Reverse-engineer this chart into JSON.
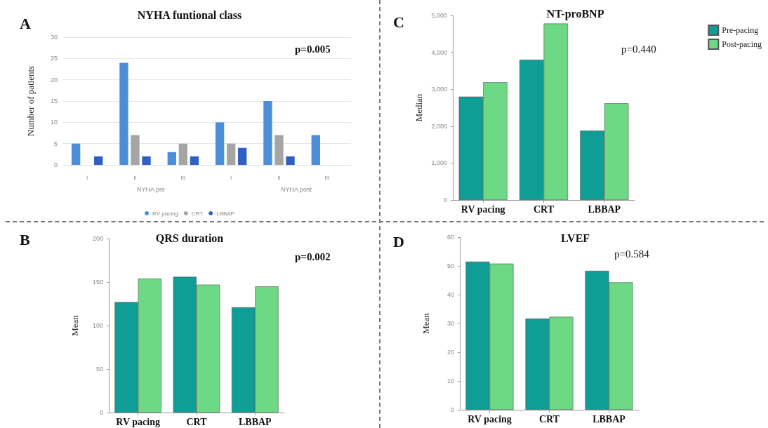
{
  "chart_data": [
    {
      "type": "bar",
      "title": "NYHA funtional class",
      "ylabel": "Number of patients",
      "categories": [
        "I",
        "II",
        "III",
        "I",
        "II",
        "III"
      ],
      "annotations": [
        "A",
        "p=0.005",
        "NYHA pre",
        "NYHA post"
      ],
      "ylim": [
        0,
        30
      ],
      "yticks": [
        0,
        5,
        10,
        15,
        20,
        25,
        30
      ],
      "grid": "y",
      "legend": "bottom",
      "series": [
        {
          "name": "RV pacing",
          "color": "#4a8fd8",
          "values": [
            5,
            24,
            3,
            10,
            15,
            7
          ]
        },
        {
          "name": "CRT",
          "color": "#a5a5a5",
          "values": [
            0,
            7,
            5,
            5,
            7,
            0
          ]
        },
        {
          "name": "LBBAP",
          "color": "#2f5fc4",
          "values": [
            2,
            2,
            2,
            4,
            2,
            0
          ]
        }
      ]
    },
    {
      "type": "bar",
      "title": "NT-proBNP",
      "ylabel": "Median",
      "categories": [
        "RV pacing",
        "CRT",
        "LBBAP"
      ],
      "annotations": [
        "C",
        "p=0.440"
      ],
      "ylim": [
        0,
        5000
      ],
      "yticks": [
        0,
        {
          "value": 1000,
          "label": "1,000"
        },
        {
          "value": 2000,
          "label": "2,000"
        },
        {
          "value": 3000,
          "label": "3,000"
        },
        {
          "value": 4000,
          "label": "4,000"
        },
        {
          "value": 5000,
          "label": "5,000"
        }
      ],
      "legend": "top right",
      "series": [
        {
          "name": "Pre-pacing",
          "color": "#0e9e96",
          "values": [
            2800,
            3800,
            1880
          ]
        },
        {
          "name": "Post-pacing",
          "color": "#6ed985",
          "values": [
            3190,
            4780,
            2620
          ]
        }
      ]
    },
    {
      "type": "bar",
      "title": "QRS duration",
      "ylabel": "Mean",
      "categories": [
        "RV pacing",
        "CRT",
        "LBBAP"
      ],
      "annotations": [
        "B",
        "p=0.002"
      ],
      "ylim": [
        0,
        200
      ],
      "yticks": [
        0,
        50,
        100,
        150,
        200
      ],
      "series": [
        {
          "color": "#0e9e96",
          "values": [
            127,
            156,
            121
          ]
        },
        {
          "color": "#6ed985",
          "values": [
            154,
            147,
            145
          ]
        }
      ]
    },
    {
      "type": "bar",
      "title": "LVEF",
      "ylabel": "Mean",
      "categories": [
        "RV pacing",
        "CRT",
        "LBBAP"
      ],
      "annotations": [
        "D",
        "p=0.584"
      ],
      "ylim": [
        0,
        60
      ],
      "yticks": [
        0,
        10,
        20,
        30,
        40,
        50,
        60
      ],
      "series": [
        {
          "color": "#0e9e96",
          "values": [
            51.5,
            31.7,
            48.3
          ]
        },
        {
          "color": "#6ed985",
          "values": [
            50.8,
            32.3,
            44.3
          ]
        }
      ]
    }
  ]
}
